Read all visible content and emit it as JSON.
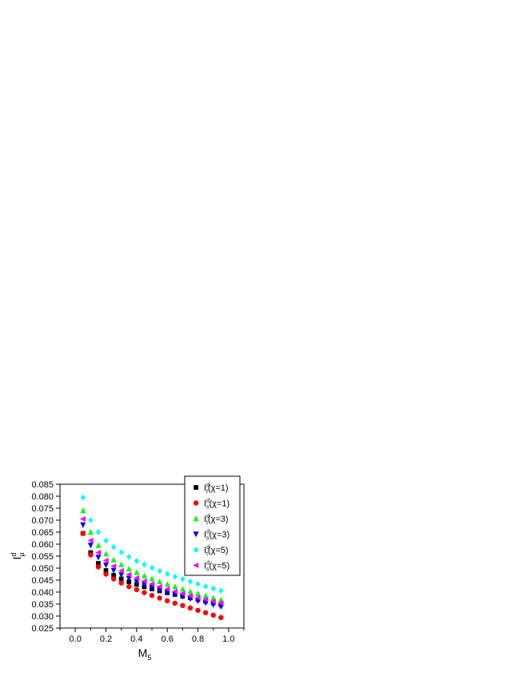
{
  "chart_data": {
    "type": "scatter",
    "title": "",
    "xlabel": {
      "main": "M",
      "sub": "5"
    },
    "ylabel": {
      "main": "I",
      "sup": "d",
      "sub": "μ"
    },
    "xlim": [
      -0.1,
      1.1
    ],
    "ylim": [
      0.025,
      0.085
    ],
    "xticks": [
      0.0,
      0.2,
      0.4,
      0.6,
      0.8,
      1.0
    ],
    "xtick_labels": [
      "0.0",
      "0.2",
      "0.4",
      "0.6",
      "0.8",
      "1.0"
    ],
    "yticks": [
      0.025,
      0.03,
      0.035,
      0.04,
      0.045,
      0.05,
      0.055,
      0.06,
      0.065,
      0.07,
      0.075,
      0.08,
      0.085
    ],
    "ytick_labels": [
      "0.025",
      "0.030",
      "0.035",
      "0.040",
      "0.045",
      "0.050",
      "0.055",
      "0.060",
      "0.065",
      "0.070",
      "0.075",
      "0.080",
      "0.085"
    ],
    "grid": false,
    "legend_position": "top-right",
    "x": [
      0.05,
      0.1,
      0.15,
      0.2,
      0.25,
      0.3,
      0.35,
      0.4,
      0.45,
      0.5,
      0.55,
      0.6,
      0.65,
      0.7,
      0.75,
      0.8,
      0.85,
      0.9,
      0.95
    ],
    "series": [
      {
        "name": "I_t^d(χ=1)",
        "base": "I",
        "sup": "d",
        "sub": "t",
        "arg": "(χ=1)",
        "color": "#000000",
        "marker": "square",
        "values": [
          0.0645,
          0.0565,
          0.052,
          0.049,
          0.047,
          0.0455,
          0.0443,
          0.0432,
          0.0422,
          0.0413,
          0.0405,
          0.0397,
          0.039,
          0.0383,
          0.0376,
          0.0369,
          0.0362,
          0.0355,
          0.0348
        ]
      },
      {
        "name": "I_s^d(χ=1)",
        "base": "I",
        "sup": "d",
        "sub": "s",
        "arg": "(χ=1)",
        "color": "#ff0000",
        "marker": "circle",
        "values": [
          0.0645,
          0.0555,
          0.0505,
          0.0475,
          0.0455,
          0.0438,
          0.0423,
          0.041,
          0.0398,
          0.0386,
          0.0375,
          0.0364,
          0.0354,
          0.0344,
          0.0334,
          0.0324,
          0.0314,
          0.0304,
          0.0294
        ]
      },
      {
        "name": "I_t^d(χ=3)",
        "base": "I",
        "sup": "d",
        "sub": "t",
        "arg": "(χ=3)",
        "color": "#00ff00",
        "marker": "triangle-up",
        "values": [
          0.074,
          0.065,
          0.0595,
          0.056,
          0.0535,
          0.0515,
          0.0497,
          0.0482,
          0.0468,
          0.0456,
          0.0444,
          0.0433,
          0.0423,
          0.0413,
          0.0403,
          0.0394,
          0.0385,
          0.0376,
          0.0368
        ]
      },
      {
        "name": "I_s^d(χ=3)",
        "base": "I",
        "sup": "d",
        "sub": "s",
        "arg": "(χ=3)",
        "color": "#0000ff",
        "marker": "triangle-down",
        "values": [
          0.068,
          0.0595,
          0.0545,
          0.0513,
          0.049,
          0.0472,
          0.0457,
          0.0443,
          0.0431,
          0.042,
          0.0409,
          0.0399,
          0.039,
          0.0381,
          0.0372,
          0.0363,
          0.0355,
          0.0347,
          0.0339
        ]
      },
      {
        "name": "I_t^d(χ=5)",
        "base": "I",
        "sup": "d",
        "sub": "t",
        "arg": "(χ=5)",
        "color": "#00ffff",
        "marker": "diamond",
        "values": [
          0.0795,
          0.07,
          0.065,
          0.0615,
          0.0588,
          0.0566,
          0.0547,
          0.053,
          0.0515,
          0.0501,
          0.0488,
          0.0476,
          0.0465,
          0.0454,
          0.0444,
          0.0434,
          0.0424,
          0.0415,
          0.0406
        ]
      },
      {
        "name": "I_s^d(χ=5)",
        "base": "I",
        "sup": "d",
        "sub": "s",
        "arg": "(χ=5)",
        "color": "#ff00ff",
        "marker": "triangle-left",
        "values": [
          0.0705,
          0.0615,
          0.0565,
          0.0532,
          0.0508,
          0.0489,
          0.0473,
          0.0459,
          0.0446,
          0.0434,
          0.0423,
          0.0413,
          0.0403,
          0.0394,
          0.0385,
          0.0377,
          0.0369,
          0.0361,
          0.0354
        ]
      }
    ]
  }
}
